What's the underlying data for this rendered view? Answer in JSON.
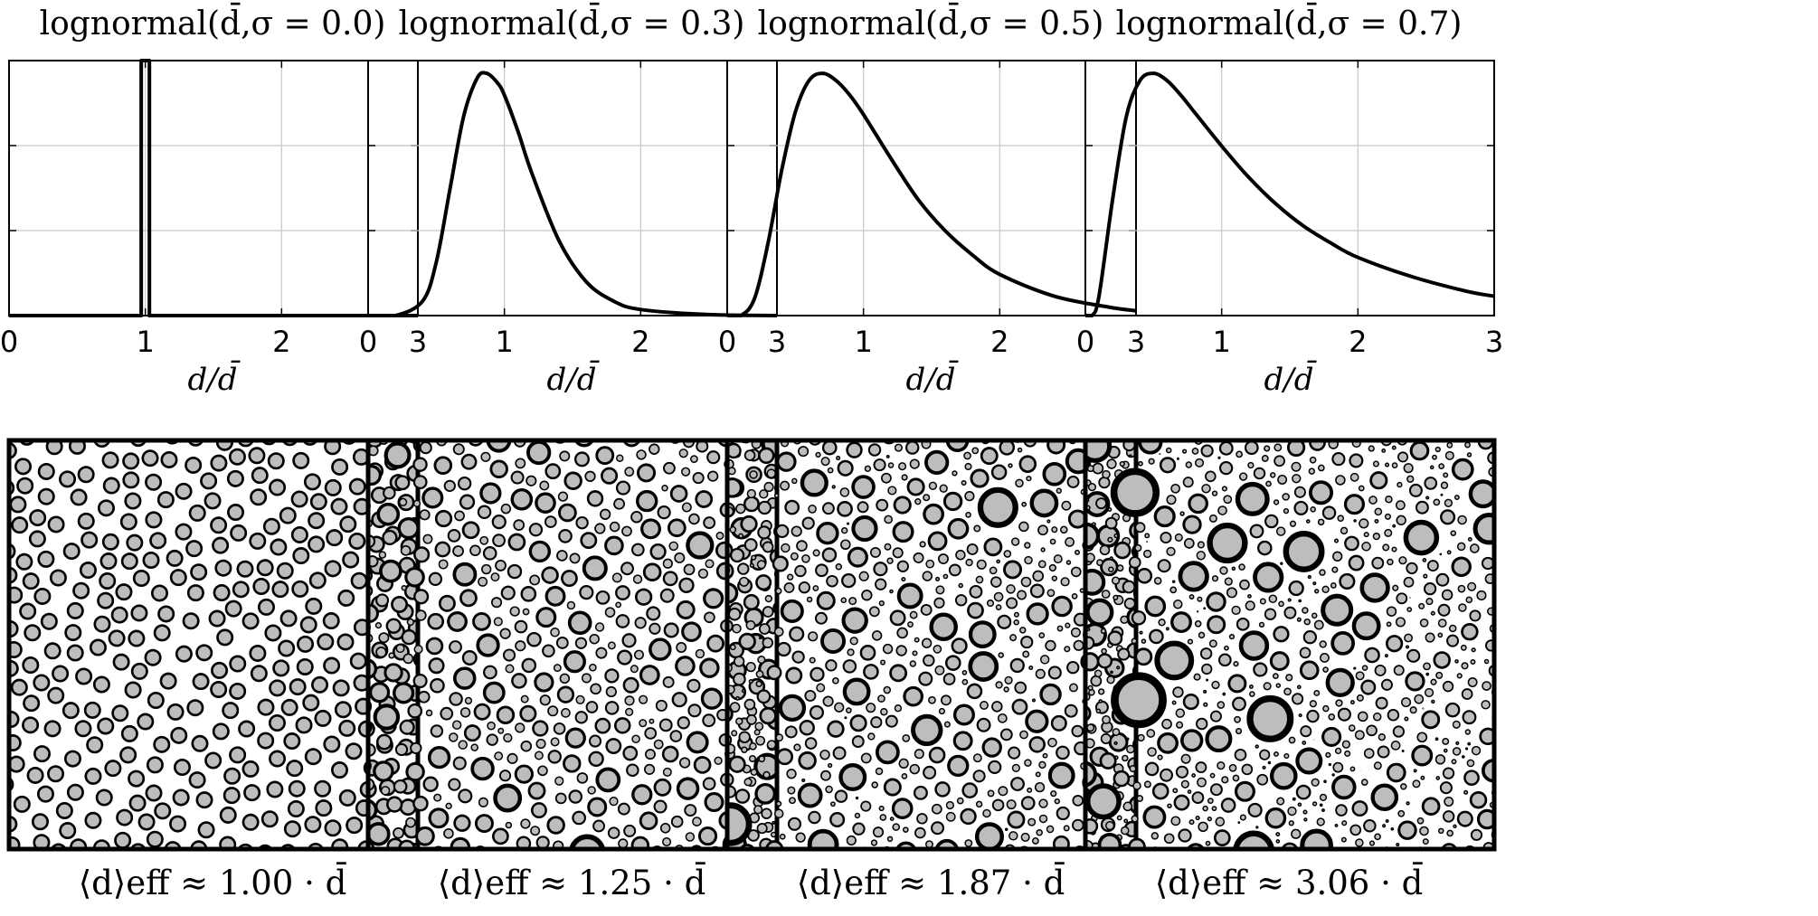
{
  "figure": {
    "panels": [
      {
        "title": "lognormal(d̄,σ = 0.0)",
        "xlabel": "d/d̄",
        "xticks": [
          "0",
          "1",
          "2",
          "3"
        ],
        "footer": "⟨d⟩eff ≈ 1.00 · d̄",
        "sigma": 0.0,
        "d_eff": 1.0
      },
      {
        "title": "lognormal(d̄,σ = 0.3)",
        "xlabel": "d/d̄",
        "xticks": [
          "0",
          "1",
          "2",
          "3"
        ],
        "footer": "⟨d⟩eff ≈ 1.25 · d̄",
        "sigma": 0.3,
        "d_eff": 1.25
      },
      {
        "title": "lognormal(d̄,σ = 0.5)",
        "xlabel": "d/d̄",
        "xticks": [
          "0",
          "1",
          "2",
          "3"
        ],
        "footer": "⟨d⟩eff ≈ 1.87 · d̄",
        "sigma": 0.5,
        "d_eff": 1.87
      },
      {
        "title": "lognormal(d̄,σ = 0.7)",
        "xlabel": "d/d̄",
        "xticks": [
          "0",
          "1",
          "2",
          "3"
        ],
        "footer": "⟨d⟩eff ≈ 3.06 · d̄",
        "sigma": 0.7,
        "d_eff": 3.06
      }
    ]
  },
  "chart_data": [
    {
      "type": "line",
      "title": "lognormal(d̄,σ = 0.0)",
      "xlabel": "d/d̄",
      "ylabel": "",
      "xlim": [
        0,
        3
      ],
      "grid": true,
      "series": [
        {
          "x": [
            0,
            0.97,
            0.97,
            1.03,
            1.03,
            3
          ],
          "y": [
            0,
            0,
            1,
            1,
            0,
            0
          ]
        }
      ]
    },
    {
      "type": "line",
      "title": "lognormal(d̄,σ = 0.3)",
      "xlabel": "d/d̄",
      "ylabel": "",
      "xlim": [
        0,
        3
      ],
      "grid": true,
      "series": [
        {
          "x": [
            0.0,
            0.2,
            0.4,
            0.5,
            0.6,
            0.7,
            0.8,
            0.87,
            0.95,
            1.0,
            1.1,
            1.2,
            1.4,
            1.6,
            1.8,
            2.0,
            2.5,
            3.0
          ],
          "y": [
            0.0,
            0.0,
            0.06,
            0.22,
            0.52,
            0.82,
            0.98,
            1.0,
            0.96,
            0.91,
            0.76,
            0.59,
            0.31,
            0.14,
            0.06,
            0.025,
            0.004,
            0.0
          ]
        }
      ]
    },
    {
      "type": "line",
      "title": "lognormal(d̄,σ = 0.5)",
      "xlabel": "d/d̄",
      "ylabel": "",
      "xlim": [
        0,
        3
      ],
      "grid": true,
      "series": [
        {
          "x": [
            0.0,
            0.1,
            0.2,
            0.3,
            0.4,
            0.5,
            0.6,
            0.7,
            0.8,
            0.9,
            1.0,
            1.2,
            1.4,
            1.6,
            1.8,
            2.0,
            2.4,
            2.8,
            3.0
          ],
          "y": [
            0.0,
            0.0,
            0.07,
            0.3,
            0.6,
            0.84,
            0.97,
            1.0,
            0.97,
            0.91,
            0.83,
            0.65,
            0.48,
            0.35,
            0.25,
            0.17,
            0.08,
            0.035,
            0.02
          ]
        }
      ]
    },
    {
      "type": "line",
      "title": "lognormal(d̄,σ = 0.7)",
      "xlabel": "d/d̄",
      "ylabel": "",
      "xlim": [
        0,
        3
      ],
      "grid": true,
      "series": [
        {
          "x": [
            0.0,
            0.05,
            0.1,
            0.2,
            0.3,
            0.4,
            0.5,
            0.6,
            0.7,
            0.8,
            1.0,
            1.2,
            1.4,
            1.6,
            1.8,
            2.0,
            2.4,
            2.8,
            3.0
          ],
          "y": [
            0.0,
            0.0,
            0.08,
            0.48,
            0.82,
            0.97,
            1.0,
            0.97,
            0.91,
            0.84,
            0.7,
            0.57,
            0.46,
            0.37,
            0.3,
            0.24,
            0.16,
            0.1,
            0.08
          ]
        }
      ]
    }
  ]
}
